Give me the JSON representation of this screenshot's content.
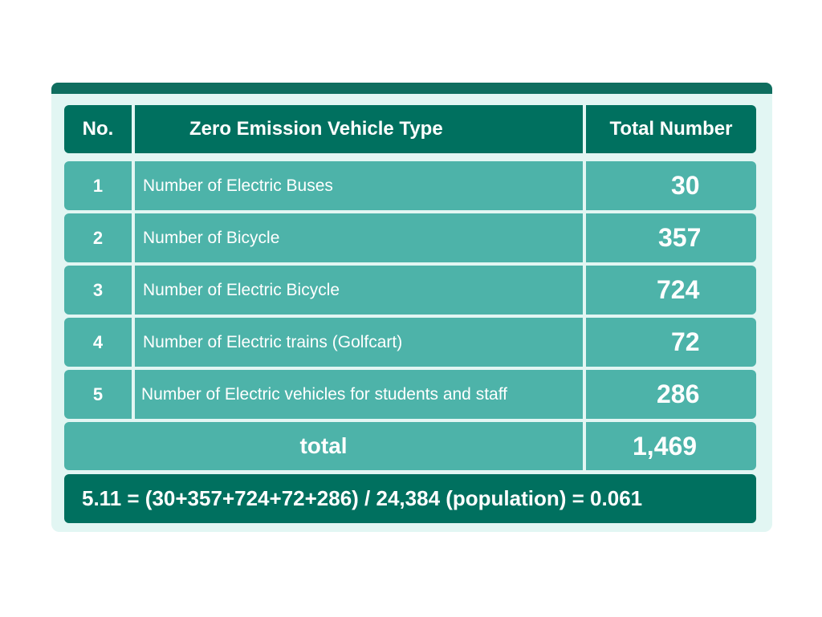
{
  "table": {
    "headers": {
      "no": "No.",
      "type": "Zero Emission Vehicle Type",
      "total": "Total Number"
    },
    "rows": [
      {
        "no": "1",
        "type": "Number of Electric Buses",
        "total": "30"
      },
      {
        "no": "2",
        "type": "Number of Bicycle",
        "total": "357"
      },
      {
        "no": "3",
        "type": "Number of Electric Bicycle",
        "total": "724"
      },
      {
        "no": "4",
        "type": "Number of Electric trains (Golfcart)",
        "total": "72"
      },
      {
        "no": "5",
        "type": "Number of Electric vehicles for students and staff",
        "total": "286"
      }
    ],
    "total_row": {
      "label": "total",
      "value": "1,469"
    },
    "formula": "5.11 = (30+357+724+72+286) / 24,384 (population) = 0.061"
  },
  "colors": {
    "header_bg": "#00705f",
    "row_bg": "#4db3a9",
    "card_bg": "#e2f6f3"
  }
}
